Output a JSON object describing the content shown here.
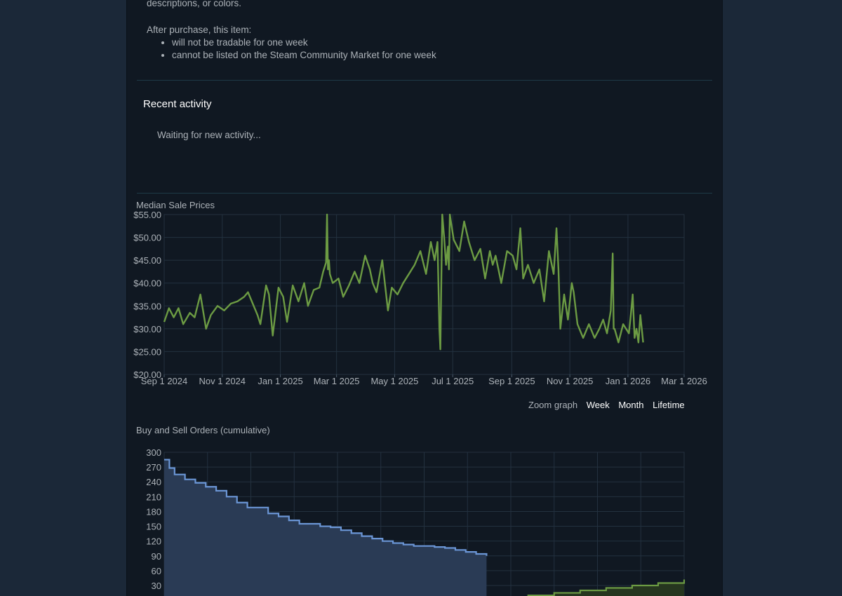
{
  "item_info": {
    "description_tail": "descriptions, or colors.",
    "after_purchase_label": "After purchase, this item:",
    "restrictions": [
      "will not be tradable for one week",
      "cannot be listed on the Steam Community Market for one week"
    ]
  },
  "recent_activity": {
    "title": "Recent activity",
    "status": "Waiting for new activity..."
  },
  "zoom": {
    "label": "Zoom graph",
    "options": [
      "Week",
      "Month",
      "Lifetime"
    ]
  },
  "colors": {
    "page_bg": "#1b2838",
    "panel_bg": "#101822",
    "grid": "#23313f",
    "price_line": "#6c9b43",
    "buy_line": "#6b96d6",
    "buy_fill": "#2a3b55",
    "sell_line": "#6c9b43",
    "sell_fill": "#26361f"
  },
  "chart_data": [
    {
      "type": "line",
      "title": "Median Sale Prices",
      "xlabel": "",
      "ylabel": "",
      "x_ticks": [
        "Sep 1 2024",
        "Nov 1 2024",
        "Jan 1 2025",
        "Mar 1 2025",
        "May 1 2025",
        "Jul 1 2025",
        "Sep 1 2025",
        "Nov 1 2025",
        "Jan 1 2026",
        "Mar 1 2026"
      ],
      "y_ticks": [
        "$20.00",
        "$25.00",
        "$30.00",
        "$35.00",
        "$40.00",
        "$45.00",
        "$50.00",
        "$55.00"
      ],
      "xlim": [
        "2024-09-01",
        "2026-03-01"
      ],
      "ylim": [
        20,
        55
      ],
      "grid": true,
      "series": [
        {
          "x": [
            "2024-09-01",
            "2024-09-06",
            "2024-09-11",
            "2024-09-16",
            "2024-09-21",
            "2024-09-28",
            "2024-10-03",
            "2024-10-09",
            "2024-10-15",
            "2024-10-20",
            "2024-10-27",
            "2024-11-03",
            "2024-11-10",
            "2024-11-17",
            "2024-11-24",
            "2024-11-28",
            "2024-12-01",
            "2024-12-06",
            "2024-12-08",
            "2024-12-11",
            "2024-12-17",
            "2024-12-20",
            "2024-12-24",
            "2024-12-30",
            "2025-01-04",
            "2025-01-08",
            "2025-01-14",
            "2025-01-20",
            "2025-01-26",
            "2025-01-30",
            "2025-02-05",
            "2025-02-11",
            "2025-02-15",
            "2025-02-18",
            "2025-02-19",
            "2025-02-20",
            "2025-02-21",
            "2025-02-22",
            "2025-02-25",
            "2025-03-03",
            "2025-03-08",
            "2025-03-14",
            "2025-03-20",
            "2025-03-25",
            "2025-03-31",
            "2025-04-05",
            "2025-04-08",
            "2025-04-12",
            "2025-04-18",
            "2025-04-24",
            "2025-04-28",
            "2025-05-04",
            "2025-05-10",
            "2025-05-16",
            "2025-05-22",
            "2025-05-28",
            "2025-06-03",
            "2025-06-08",
            "2025-06-12",
            "2025-06-15",
            "2025-06-17",
            "2025-06-18",
            "2025-06-20",
            "2025-06-22",
            "2025-06-24",
            "2025-06-26",
            "2025-06-27",
            "2025-06-28",
            "2025-07-02",
            "2025-07-08",
            "2025-07-13",
            "2025-07-18",
            "2025-07-24",
            "2025-07-30",
            "2025-08-04",
            "2025-08-09",
            "2025-08-12",
            "2025-08-15",
            "2025-08-21",
            "2025-08-27",
            "2025-09-02",
            "2025-09-06",
            "2025-09-10",
            "2025-09-13",
            "2025-09-18",
            "2025-09-24",
            "2025-09-30",
            "2025-10-05",
            "2025-10-10",
            "2025-10-15",
            "2025-10-18",
            "2025-10-20",
            "2025-10-22",
            "2025-10-26",
            "2025-10-30",
            "2025-11-03",
            "2025-11-05",
            "2025-11-09",
            "2025-11-15",
            "2025-11-21",
            "2025-11-27",
            "2025-12-02",
            "2025-12-06",
            "2025-12-10",
            "2025-12-14",
            "2025-12-16",
            "2025-12-17",
            "2025-12-18",
            "2025-12-22",
            "2025-12-27",
            "2026-01-02",
            "2026-01-04",
            "2026-01-06",
            "2026-01-08",
            "2026-01-10",
            "2026-01-12",
            "2026-01-14",
            "2026-01-16",
            "2026-01-17"
          ],
          "y": [
            31.5,
            34.5,
            32.5,
            34.5,
            31,
            33.5,
            32.5,
            37.5,
            30,
            33,
            35,
            34,
            35.5,
            36,
            37,
            38,
            36.5,
            34,
            33,
            31,
            39.5,
            37.5,
            28.5,
            39,
            37,
            31.5,
            39.5,
            36,
            40,
            35,
            38.5,
            39,
            42.5,
            44.5,
            55,
            43,
            45,
            42,
            40,
            41,
            37,
            39.5,
            42.5,
            40,
            46,
            43,
            40,
            38,
            45,
            34,
            39,
            37.5,
            40,
            42,
            44,
            47,
            42,
            49,
            45,
            49,
            30,
            25.5,
            55,
            50,
            44,
            48,
            43,
            55,
            49.5,
            47,
            53.5,
            49,
            45,
            47.5,
            41,
            47,
            44,
            46,
            40,
            47,
            46,
            43,
            52,
            41,
            44,
            40,
            43,
            36,
            47,
            42,
            52,
            43,
            30,
            37.5,
            32,
            40,
            38,
            31,
            28,
            31,
            28,
            30,
            32,
            29,
            34,
            46.5,
            30,
            30,
            27,
            31,
            29,
            33,
            37.5,
            28,
            30,
            27,
            33,
            29,
            27
          ]
        }
      ]
    },
    {
      "type": "area",
      "title": "Buy and Sell Orders (cumulative)",
      "xlabel": "",
      "ylabel": "",
      "y_ticks": [
        "30",
        "60",
        "90",
        "120",
        "150",
        "180",
        "210",
        "240",
        "270",
        "300"
      ],
      "ylim": [
        0,
        300
      ],
      "grid": true,
      "series": [
        {
          "name": "",
          "color": "blue",
          "x": [
            0,
            0.01,
            0.02,
            0.04,
            0.06,
            0.08,
            0.1,
            0.12,
            0.14,
            0.16,
            0.2,
            0.22,
            0.24,
            0.26,
            0.3,
            0.32,
            0.34,
            0.36,
            0.38,
            0.4,
            0.42,
            0.44,
            0.46,
            0.48,
            0.5,
            0.52,
            0.54,
            0.56,
            0.58,
            0.6,
            0.62
          ],
          "y": [
            285,
            268,
            255,
            245,
            238,
            230,
            222,
            210,
            198,
            188,
            176,
            170,
            162,
            155,
            150,
            148,
            142,
            136,
            130,
            125,
            120,
            116,
            113,
            110,
            110,
            108,
            106,
            102,
            98,
            94,
            90
          ]
        },
        {
          "name": "",
          "color": "green",
          "x": [
            0.55,
            0.6,
            0.65,
            0.7,
            0.75,
            0.8,
            0.85,
            0.9,
            0.95,
            1.0
          ],
          "y": [
            0,
            2,
            5,
            10,
            15,
            20,
            25,
            30,
            35,
            42
          ]
        }
      ]
    }
  ]
}
